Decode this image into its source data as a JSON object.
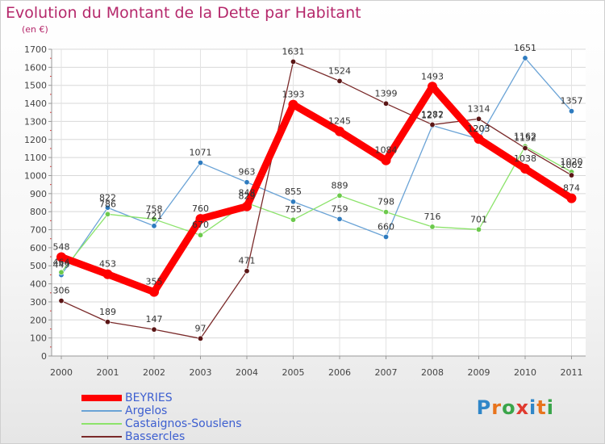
{
  "title": "Evolution du Montant de la Dette par Habitant",
  "subtitle": "(en €)",
  "logo": {
    "text": "Proxiti",
    "letters": [
      {
        "ch": "P",
        "color": "#2f86c8"
      },
      {
        "ch": "r",
        "color": "#e8741d"
      },
      {
        "ch": "o",
        "color": "#3aa54a"
      },
      {
        "ch": "x",
        "color": "#e03a2f"
      },
      {
        "ch": "i",
        "color": "#2f86c8"
      },
      {
        "ch": "t",
        "color": "#e8741d"
      },
      {
        "ch": "i",
        "color": "#3aa54a"
      }
    ]
  },
  "chart_data": {
    "type": "line",
    "title": "Evolution du Montant de la Dette par Habitant",
    "ylabel": "(en €)",
    "xlabel": "",
    "x": [
      "2000",
      "2001",
      "2002",
      "2003",
      "2004",
      "2005",
      "2006",
      "2007",
      "2008",
      "2009",
      "2010",
      "2011"
    ],
    "ylim": [
      0,
      1700
    ],
    "yticks": [
      0,
      100,
      200,
      300,
      400,
      500,
      600,
      700,
      800,
      900,
      1000,
      1100,
      1200,
      1300,
      1400,
      1500,
      1600,
      1700
    ],
    "grid": true,
    "legend_position": "bottom-left",
    "series": [
      {
        "name": "BEYRIES",
        "color": "#ff0000",
        "marker": "#ff0000",
        "values": [
          548,
          453,
          355,
          760,
          829,
          1393,
          1245,
          1084,
          1493,
          1203,
          1038,
          874
        ]
      },
      {
        "name": "Argelos",
        "color": "#6aa3d6",
        "marker": "#2e7bbf",
        "values": [
          449,
          822,
          721,
          1071,
          963,
          855,
          759,
          660,
          1277,
          1203,
          1651,
          1357
        ]
      },
      {
        "name": "Castaignos-Souslens",
        "color": "#8ce36b",
        "marker": "#6cc94c",
        "values": [
          464,
          786,
          758,
          670,
          848,
          755,
          889,
          798,
          716,
          701,
          1162,
          1020
        ]
      },
      {
        "name": "Bassercles",
        "color": "#7a2a2a",
        "marker": "#5a1515",
        "values": [
          306,
          189,
          147,
          97,
          471,
          1631,
          1524,
          1399,
          1282,
          1314,
          1152,
          1002
        ]
      }
    ]
  }
}
